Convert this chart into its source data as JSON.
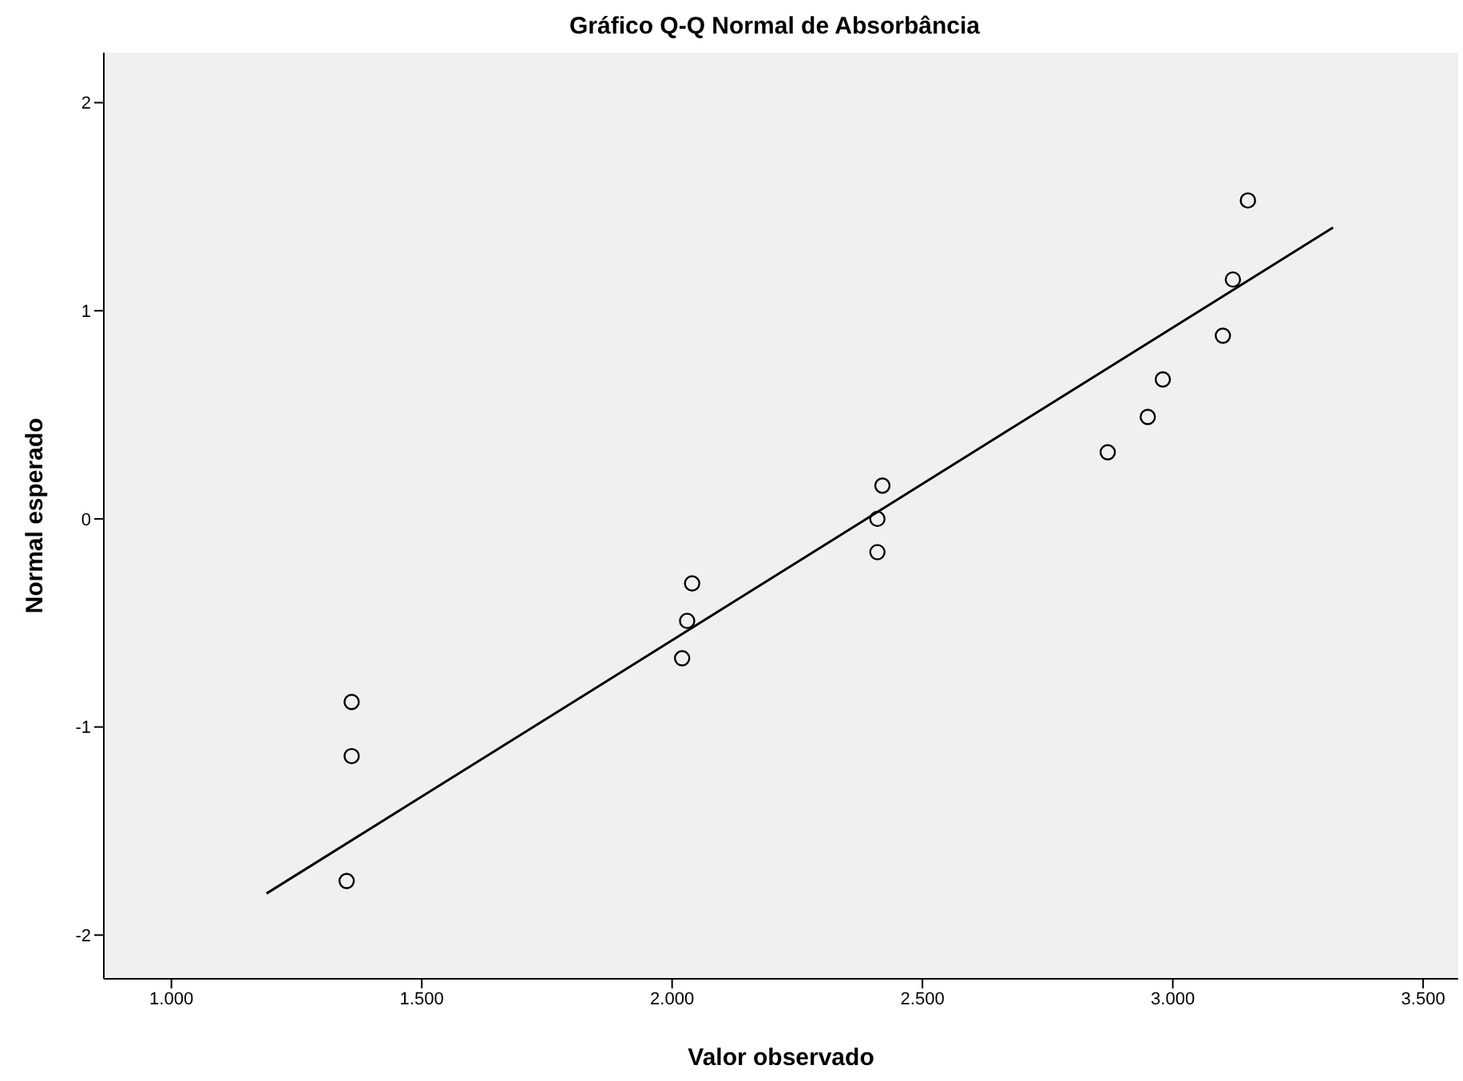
{
  "chart_data": {
    "type": "scatter",
    "title": "Gráfico Q-Q Normal de Absorbância",
    "xlabel": "Valor observado",
    "ylabel": "Normal esperado",
    "xlim": [
      865,
      3570
    ],
    "ylim": [
      -2.21,
      2.24
    ],
    "xticks": [
      {
        "value": 1000,
        "label": "1.000"
      },
      {
        "value": 1500,
        "label": "1.500"
      },
      {
        "value": 2000,
        "label": "2.000"
      },
      {
        "value": 2500,
        "label": "2.500"
      },
      {
        "value": 3000,
        "label": "3.000"
      },
      {
        "value": 3500,
        "label": "3.500"
      }
    ],
    "yticks": [
      -2,
      -1,
      0,
      1,
      2
    ],
    "grid": false,
    "legend": false,
    "series": [
      {
        "type": "scatter",
        "color": "#000000",
        "marker": "circle",
        "x": [
          1350,
          1360,
          1360,
          2020,
          2030,
          2040,
          2410,
          2410,
          2420,
          2870,
          2950,
          2980,
          3100,
          3120,
          3150
        ],
        "values": [
          -1.74,
          -1.14,
          -0.88,
          -0.67,
          -0.49,
          -0.31,
          -0.16,
          0,
          0.16,
          0.32,
          0.49,
          0.67,
          0.88,
          1.15,
          1.53
        ]
      },
      {
        "type": "line",
        "color": "#000000",
        "x": [
          1190,
          3320
        ],
        "values": [
          -1.8,
          1.4
        ],
        "line_style": "solid",
        "marker": "none"
      }
    ]
  }
}
